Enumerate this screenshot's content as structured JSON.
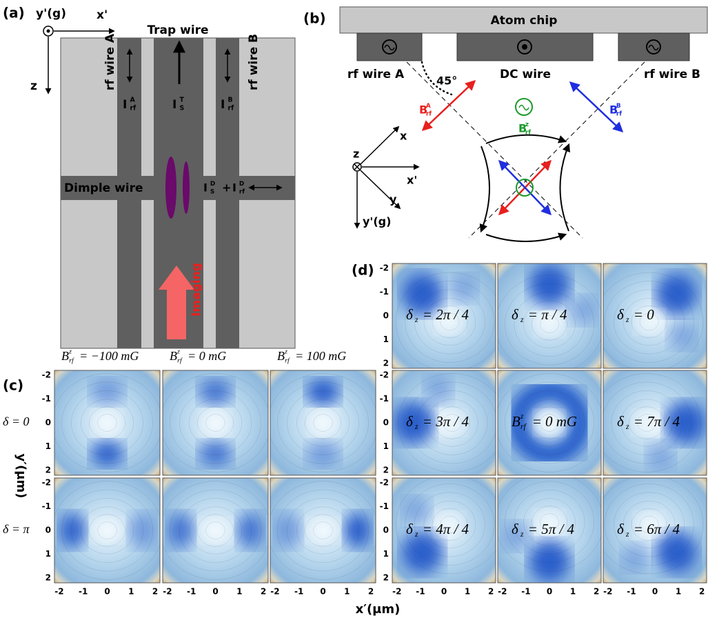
{
  "panel_a": {
    "label": "(a)",
    "axis_y": "y'(g)",
    "axis_x": "x'",
    "axis_z": "z",
    "trap_wire": "Trap wire",
    "rf_wire_a": "rf wire A",
    "rf_wire_b": "rf wire B",
    "dimple_wire": "Dimple wire",
    "imaging": "Imaging",
    "current_a": {
      "base": "I",
      "sup": "A",
      "sub": "rf"
    },
    "current_trap": {
      "base": "I",
      "sup": "T",
      "sub": "S"
    },
    "current_b": {
      "base": "I",
      "sup": "B",
      "sub": "rf"
    },
    "current_dimple_s": {
      "base": "I",
      "sup": "D",
      "sub": "S"
    },
    "plus": "+",
    "current_dimple_rf": {
      "base": "I",
      "sup": "D",
      "sub": "rf"
    }
  },
  "panel_b": {
    "label": "(b)",
    "atom_chip": "Atom chip",
    "rf_wire_a": "rf wire A",
    "dc_wire": "DC wire",
    "rf_wire_b": "rf wire B",
    "angle": "45°",
    "field_a": {
      "base": "B",
      "sup": "A",
      "sub": "rf"
    },
    "field_z": {
      "base": "B",
      "sup": "z",
      "sub": "rf"
    },
    "field_b": {
      "base": "B",
      "sup": "B",
      "sub": "rf"
    },
    "axis_z": "z",
    "axis_x": "x",
    "axis_x_prime": "x'",
    "axis_y": "y",
    "axis_y_prime": "y'(g)"
  },
  "panel_c": {
    "label": "(c)",
    "columns": [
      {
        "base": "B",
        "sub": "rf",
        "sup": "z",
        "rest": "= −100 mG"
      },
      {
        "base": "B",
        "sub": "rf",
        "sup": "z",
        "rest": "= 0 mG"
      },
      {
        "base": "B",
        "sub": "rf",
        "sup": "z",
        "rest": "= 100 mG"
      }
    ],
    "rows": [
      "δ = 0",
      "δ = π"
    ]
  },
  "panel_d": {
    "label": "(d)",
    "cells": [
      [
        {
          "base": "δ",
          "sub": "z",
          "rest": "= 2π / 4"
        },
        {
          "base": "δ",
          "sub": "z",
          "rest": "= π / 4"
        },
        {
          "base": "δ",
          "sub": "z",
          "rest": "= 0"
        }
      ],
      [
        {
          "base": "δ",
          "sub": "z",
          "rest": "= 3π / 4"
        },
        {
          "base": "B",
          "sub": "rf",
          "sup": "z",
          "rest": "= 0 mG"
        },
        {
          "base": "δ",
          "sub": "z",
          "rest": "= 7π / 4"
        }
      ],
      [
        {
          "base": "δ",
          "sub": "z",
          "rest": "= 4π / 4"
        },
        {
          "base": "δ",
          "sub": "z",
          "rest": "= 5π / 4"
        },
        {
          "base": "δ",
          "sub": "z",
          "rest": "= 6π / 4"
        }
      ]
    ]
  },
  "axes": {
    "ticks": [
      -2,
      -1,
      0,
      1,
      2
    ],
    "x_label": "x′(μm)",
    "y_label": "y′(μm)"
  }
}
